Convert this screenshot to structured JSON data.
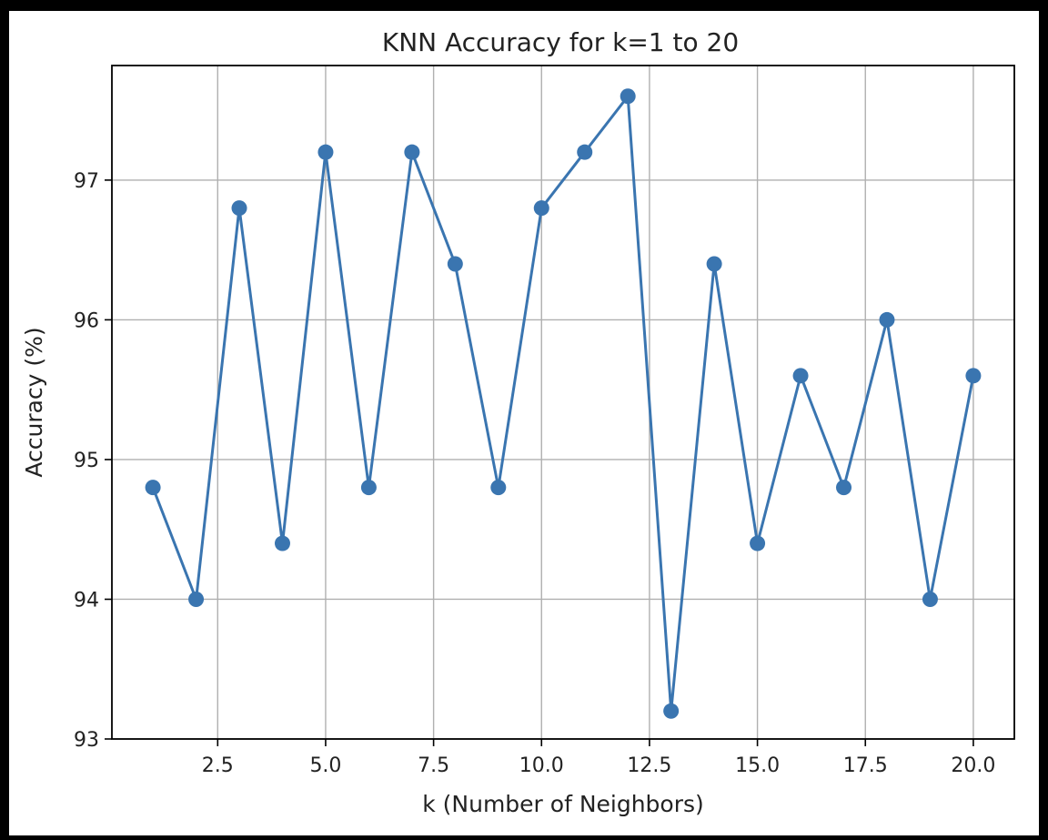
{
  "chart_data": {
    "type": "line",
    "title": "KNN Accuracy for k=1 to 20",
    "xlabel": "k (Number of Neighbors)",
    "ylabel": "Accuracy (%)",
    "x": [
      1,
      2,
      3,
      4,
      5,
      6,
      7,
      8,
      9,
      10,
      11,
      12,
      13,
      14,
      15,
      16,
      17,
      18,
      19,
      20
    ],
    "y": [
      94.8,
      94.0,
      96.8,
      94.4,
      97.2,
      94.8,
      97.2,
      96.4,
      94.8,
      96.8,
      97.2,
      97.6,
      93.2,
      96.4,
      94.4,
      95.6,
      94.8,
      96.0,
      94.0,
      95.6
    ],
    "xlim": [
      0.05,
      20.95
    ],
    "ylim": [
      93.0,
      97.82
    ],
    "xticks": [
      2.5,
      5.0,
      7.5,
      10.0,
      12.5,
      15.0,
      17.5,
      20.0
    ],
    "xtick_labels": [
      "2.5",
      "5.0",
      "7.5",
      "10.0",
      "12.5",
      "15.0",
      "17.5",
      "20.0"
    ],
    "yticks": [
      93,
      94,
      95,
      96,
      97
    ],
    "ytick_labels": [
      "93",
      "94",
      "95",
      "96",
      "97"
    ],
    "grid": true,
    "marker": "circle",
    "color": "#3a75b0",
    "grid_color": "#b0b0b0"
  }
}
